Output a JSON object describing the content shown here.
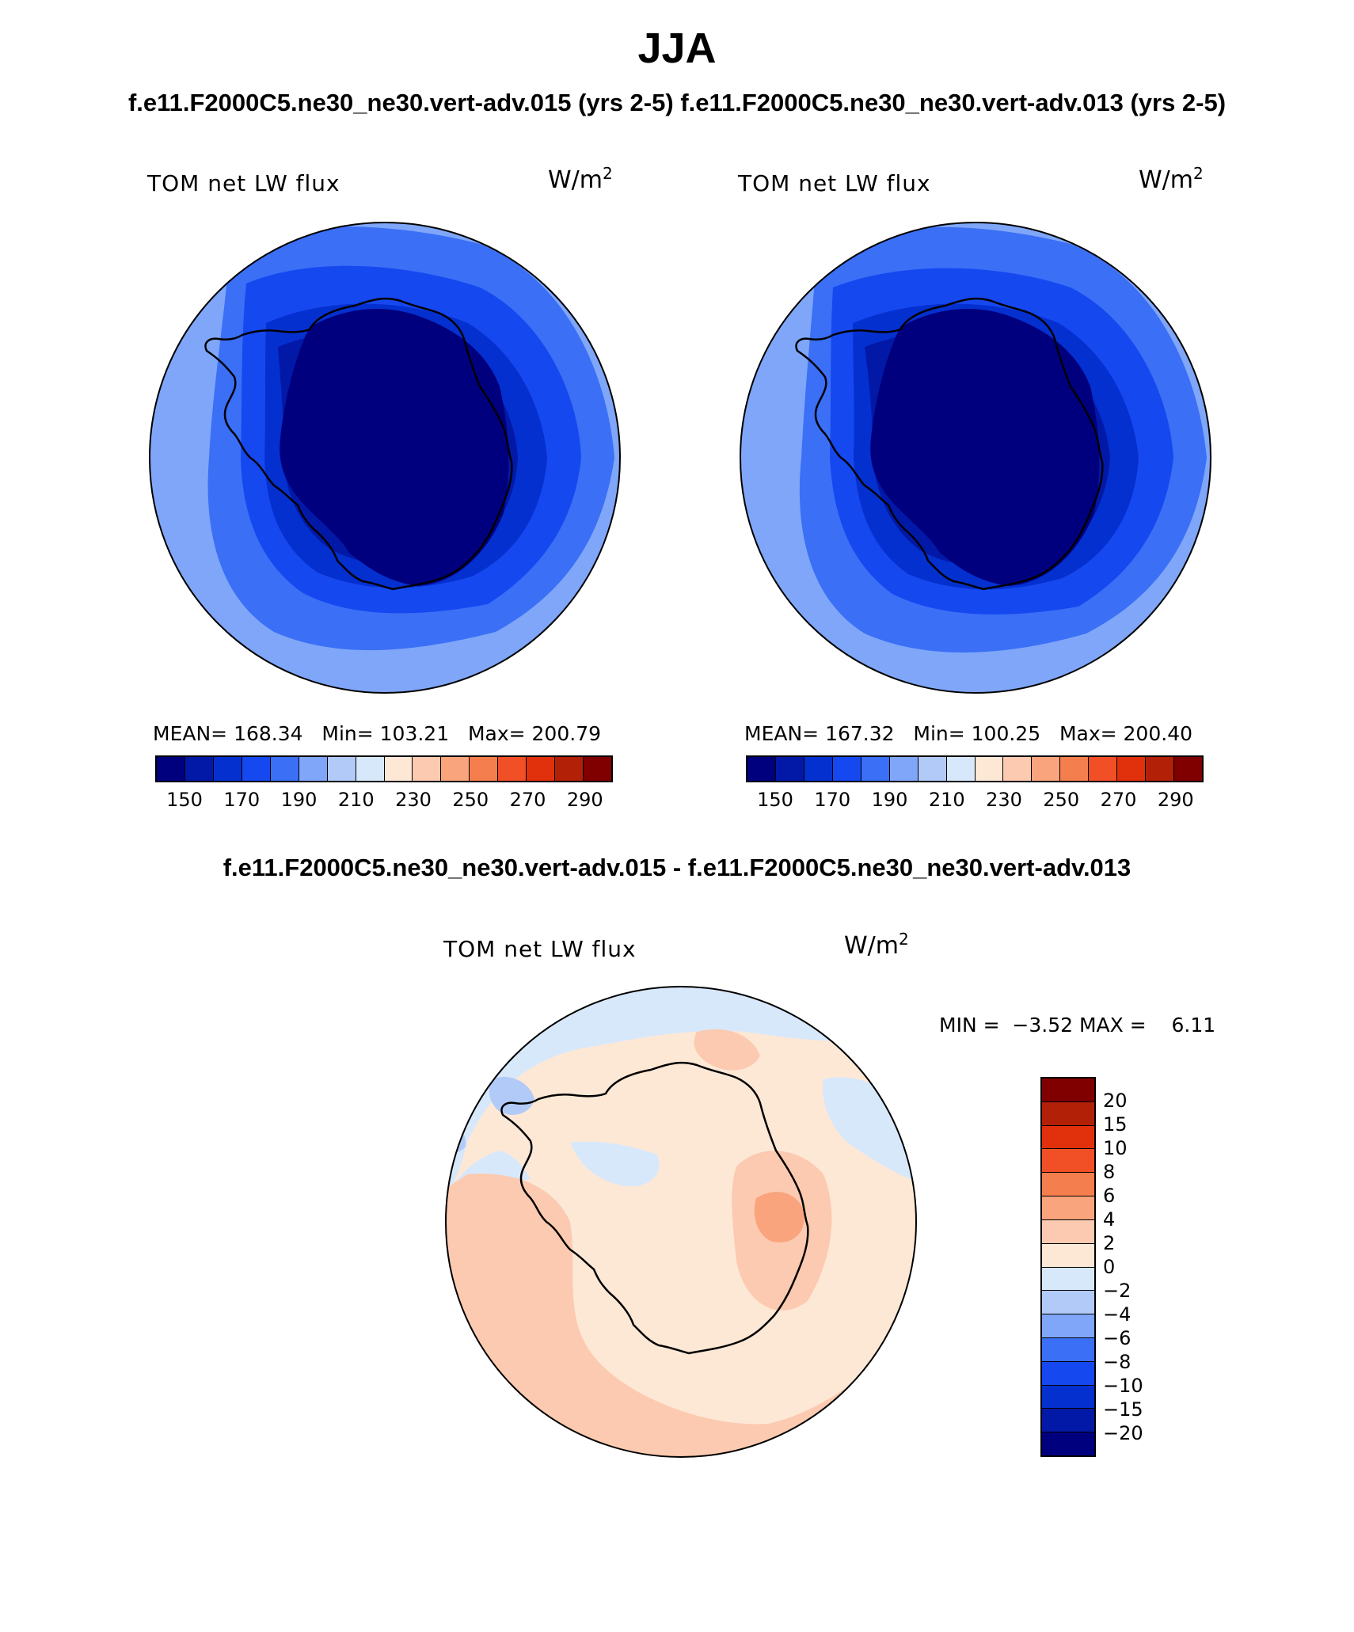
{
  "figure": {
    "season": "JJA",
    "subtitle_left": "f.e11.F2000C5.ne30_ne30.vert-adv.015 (yrs 2-5)",
    "subtitle_right": "f.e11.F2000C5.ne30_ne30.vert-adv.013 (yrs 2-5)",
    "diff_title": "f.e11.F2000C5.ne30_ne30.vert-adv.015 - f.e11.F2000C5.ne30_ne30.vert-adv.013"
  },
  "panels": {
    "left": {
      "variable": "TOM net LW flux",
      "units_base": "W/m",
      "units_exp": "2",
      "stats": "MEAN= 168.34   Min= 103.21   Max= 200.79"
    },
    "right": {
      "variable": "TOM net LW flux",
      "units_base": "W/m",
      "units_exp": "2",
      "stats": "MEAN= 167.32   Min= 100.25   Max= 200.40"
    },
    "diff": {
      "variable": "TOM net LW flux",
      "units_base": "W/m",
      "units_exp": "2",
      "stats": "MIN =  −3.52 MAX =    6.11"
    }
  },
  "colorbar_main": {
    "tick_labels": [
      "150",
      "170",
      "190",
      "210",
      "230",
      "250",
      "270",
      "290"
    ],
    "colors": [
      "#00007e",
      "#0219a8",
      "#0530d0",
      "#1648f0",
      "#3a6ff6",
      "#7fa6f8",
      "#b2caf7",
      "#d8e8fb",
      "#fde8d6",
      "#fccab0",
      "#f9a47d",
      "#f57e4e",
      "#f14f25",
      "#e0300c",
      "#b22008",
      "#800000"
    ]
  },
  "colorbar_diff": {
    "tick_labels": [
      "20",
      "15",
      "10",
      "8",
      "6",
      "4",
      "2",
      "0",
      "−2",
      "−4",
      "−6",
      "−8",
      "−10",
      "−15",
      "−20"
    ],
    "colors": [
      "#800000",
      "#b22008",
      "#e0300c",
      "#f14f25",
      "#f57e4e",
      "#f9a47d",
      "#fccab0",
      "#fde8d6",
      "#d8e8fb",
      "#b2caf7",
      "#7fa6f8",
      "#3a6ff6",
      "#1648f0",
      "#0530d0",
      "#0219a8",
      "#00007e"
    ]
  }
}
